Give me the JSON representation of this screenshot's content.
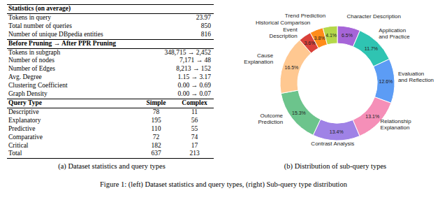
{
  "table": {
    "sections": [
      {
        "header": [
          "Statistics (on average)"
        ],
        "rows": [
          [
            "Tokens in query",
            "23.97"
          ],
          [
            "Total number of queries",
            "850"
          ],
          [
            "Number of unique DBpedia entities",
            "816"
          ]
        ]
      },
      {
        "header": [
          "Before Pruning → After PPR Pruning"
        ],
        "rows": [
          [
            "Tokens in subgraph",
            "348,715 → 2,452"
          ],
          [
            "Number of nodes",
            "7,171 → 48"
          ],
          [
            "Number of Edges",
            "8,213 → 152"
          ],
          [
            "Avg. Degree",
            "1.15 → 3.17"
          ],
          [
            "Clustering Coefficient",
            "0.00 → 0.69"
          ],
          [
            "Graph Density",
            "0.00 → 0.07"
          ]
        ]
      },
      {
        "header": [
          "Query Type",
          "Simple",
          "Complex"
        ],
        "rows": [
          [
            "Descriptive",
            "78",
            "11"
          ],
          [
            "Explanatory",
            "195",
            "56"
          ],
          [
            "Predictive",
            "110",
            "55"
          ],
          [
            "Comparative",
            "72",
            "74"
          ],
          [
            "Critical",
            "182",
            "17"
          ],
          [
            "Total",
            "637",
            "213"
          ]
        ]
      }
    ]
  },
  "subcaptions": [
    "(a) Dataset statistics and query types",
    "(b) Distribution of sub-query types"
  ],
  "caption": "Figure 1: (left) Dataset statistics and query types, (right) Sub-query type distribution",
  "chart_data": {
    "type": "donut",
    "categories": [
      "Character Description",
      "Application and Practice",
      "Evaluation and Reflection",
      "Relationship Explanation",
      "Contrast Analysis",
      "Outcome Prediction",
      "Cause Explanation",
      "Event Description",
      "Historical Comparison",
      "Trend Prediction"
    ],
    "values": [
      6.5,
      11.7,
      12.6,
      13.1,
      13.4,
      15.3,
      16.5,
      3.6,
      3.8,
      4.1
    ],
    "value_labels": [
      "6.5%",
      "11.7%",
      "12.6%",
      "13.1%",
      "13.4%",
      "15.3%",
      "16.5%",
      "3.6%",
      "3.8%",
      "4.1%"
    ],
    "colors": [
      "#a665d8",
      "#2fc4b2",
      "#5c9cf5",
      "#f58fb8",
      "#9f82e6",
      "#6cc48c",
      "#ffc891",
      "#d9413a",
      "#ff8c1a",
      "#b5d84a"
    ]
  }
}
